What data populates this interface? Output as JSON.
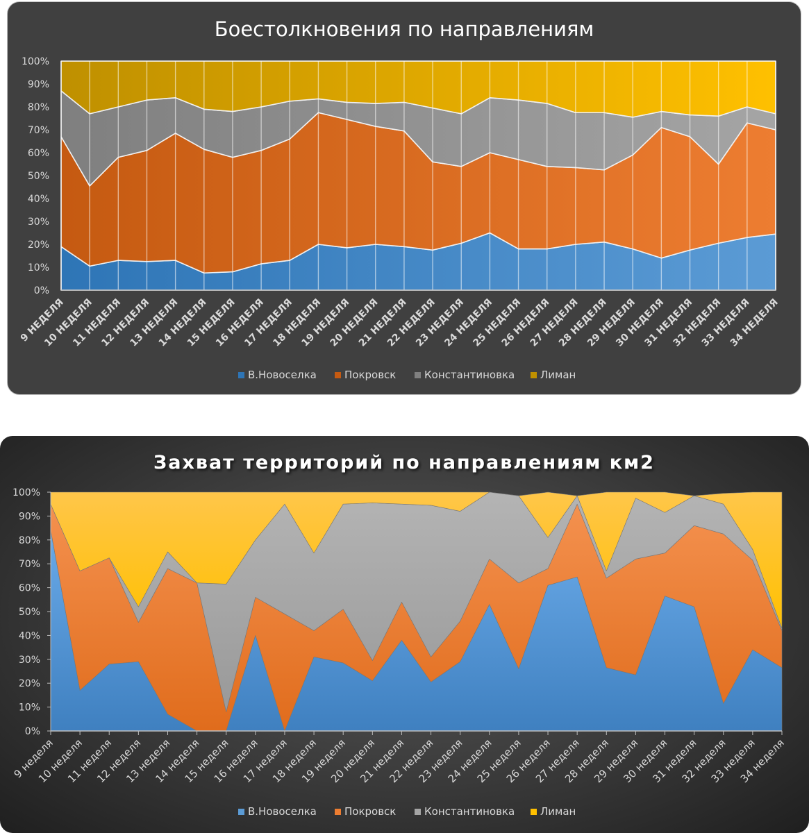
{
  "chart_data": [
    {
      "type": "area",
      "stacked": "100%",
      "title": "Боестолкновения по направлениям",
      "categories": [
        "9 НЕДЕЛЯ",
        "10 НЕДЕЛЯ",
        "11 НЕДЕЛЯ",
        "12 НЕДЕЛЯ",
        "13 НЕДЕЛЯ",
        "14 НЕДЕЛЯ",
        "15 НЕДЕЛЯ",
        "16 НЕДЕЛЯ",
        "17 НЕДЕЛЯ",
        "18 НЕДЕЛЯ",
        "19 НЕДЕЛЯ",
        "20 НЕДЕЛЯ",
        "21 НЕДЕЛЯ",
        "22 НЕДЕЛЯ",
        "23 НЕДЕЛЯ",
        "24 НЕДЕЛЯ",
        "25 НЕДЕЛЯ",
        "26 НЕДЕЛЯ",
        "27 НЕДЕЛЯ",
        "28 НЕДЕЛЯ",
        "29 НЕДЕЛЯ",
        "30 НЕДЕЛЯ",
        "31 НЕДЕЛЯ",
        "32 НЕДЕЛЯ",
        "33 НЕДЕЛЯ",
        "34 НЕДЕЛЯ"
      ],
      "yticks": [
        "0%",
        "10%",
        "20%",
        "30%",
        "40%",
        "50%",
        "60%",
        "70%",
        "80%",
        "90%",
        "100%"
      ],
      "ylim": [
        0,
        100
      ],
      "grid": "vertical",
      "legend": "bottom",
      "series": [
        {
          "name": "В.Новоселка",
          "color": "#2e75b6",
          "values": [
            19,
            10.5,
            13,
            12.5,
            13,
            7.5,
            8,
            11.5,
            13,
            20,
            18.5,
            20,
            19,
            17.5,
            20.5,
            25,
            18,
            18,
            20,
            21,
            18,
            14,
            17.5,
            20.5,
            23,
            24.5
          ]
        },
        {
          "name": "Покровск",
          "color": "#c55a11",
          "values": [
            48,
            35,
            45,
            48.5,
            55.5,
            54,
            50,
            49.5,
            53,
            57.5,
            56,
            51.5,
            50.5,
            38.5,
            33.5,
            35,
            39,
            36,
            33.5,
            31.5,
            41,
            57,
            49.5,
            34.5,
            50,
            45.5
          ]
        },
        {
          "name": "Константиновка",
          "color": "#808080",
          "values": [
            20,
            31.5,
            22,
            22,
            15.5,
            17.5,
            20,
            19,
            16.5,
            6,
            7.5,
            10,
            12.5,
            23.5,
            23,
            24,
            26,
            27.5,
            24,
            25,
            16.5,
            7,
            9.5,
            21,
            7,
            7
          ]
        },
        {
          "name": "Лиман",
          "color": "#bf9000",
          "values": [
            13,
            23,
            20,
            17,
            16,
            21,
            22,
            20,
            17.5,
            16.5,
            18,
            18.5,
            18,
            20.5,
            23,
            16,
            17,
            18.5,
            22.5,
            22.5,
            24.5,
            22,
            23.5,
            24,
            20,
            23
          ]
        }
      ]
    },
    {
      "type": "area",
      "stacked": "100%",
      "title": "Захват территорий по направлениям км2",
      "categories": [
        "9 неделя",
        "10 неделя",
        "11 неделя",
        "12 неделя",
        "13 неделя",
        "14 неделя",
        "15 неделя",
        "16 неделя",
        "17 неделя",
        "18 неделя",
        "19 неделя",
        "20 неделя",
        "21 неделя",
        "22 неделя",
        "23 неделя",
        "24 неделя",
        "25 неделя",
        "26 неделя",
        "27 неделя",
        "28 неделя",
        "29 неделя",
        "30 неделя",
        "31 неделя",
        "32 неделя",
        "33 неделя",
        "34 неделя"
      ],
      "yticks": [
        "0%",
        "10%",
        "20%",
        "30%",
        "40%",
        "50%",
        "60%",
        "70%",
        "80%",
        "90%",
        "100%"
      ],
      "ylim": [
        0,
        100
      ],
      "grid": "none",
      "legend": "bottom",
      "series": [
        {
          "name": "В.Новоселка",
          "color": "#5b9bd5",
          "values": [
            84,
            17,
            28,
            29,
            7,
            0,
            0,
            40,
            0,
            31,
            28.5,
            21,
            38,
            20.5,
            29,
            53,
            26,
            61,
            64.5,
            26.5,
            23.5,
            56.5,
            52,
            11.5,
            34,
            26.5
          ]
        },
        {
          "name": "Покровск",
          "color": "#ed7d31",
          "values": [
            11,
            50,
            44.5,
            16.5,
            61,
            62,
            8,
            16,
            49,
            11,
            22.5,
            8.5,
            16,
            10.5,
            17,
            19,
            36,
            7,
            30.5,
            37.5,
            48.5,
            18,
            34,
            71,
            37.5,
            15.5
          ]
        },
        {
          "name": "Константиновка",
          "color": "#a5a5a5",
          "values": [
            0,
            0,
            0,
            6.5,
            7,
            0,
            53.5,
            24,
            46,
            32.5,
            44,
            66,
            41,
            63.5,
            46,
            28,
            36.5,
            13,
            3.5,
            3,
            25.5,
            17,
            12.5,
            12.5,
            4.5,
            1
          ]
        },
        {
          "name": "Лиман",
          "color": "#ffc000",
          "values": [
            5,
            33,
            27.5,
            48,
            25,
            38,
            38.5,
            20,
            5,
            25.5,
            5,
            4.5,
            5,
            5.5,
            8,
            0,
            0,
            19,
            0,
            33,
            2.5,
            8.5,
            0,
            4.5,
            24,
            57
          ]
        }
      ]
    }
  ]
}
